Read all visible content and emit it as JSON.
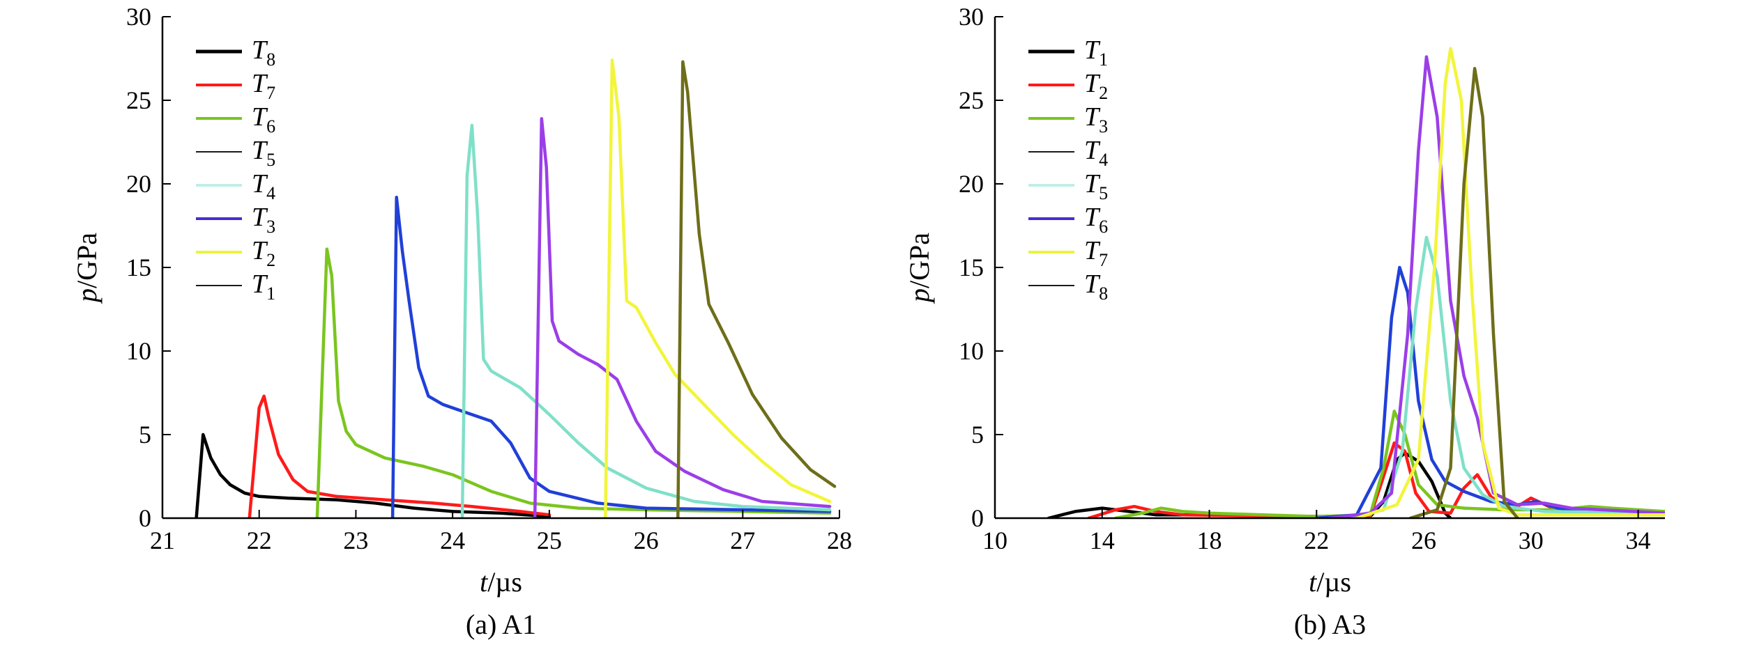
{
  "chart_data": [
    {
      "type": "line",
      "caption": "(a) A1",
      "xlabel_var": "t",
      "xlabel_unit": "/µs",
      "ylabel_var": "p",
      "ylabel_unit": "/GPa",
      "xlim": [
        21,
        28
      ],
      "ylim": [
        0,
        30
      ],
      "xticks": [
        21,
        22,
        23,
        24,
        25,
        26,
        27,
        28
      ],
      "yticks": [
        0,
        5,
        10,
        15,
        20,
        25,
        30
      ],
      "legend_position": "top-left",
      "legend": [
        {
          "name": "T",
          "sub": "8",
          "color": "#000000",
          "width": 5
        },
        {
          "name": "T",
          "sub": "7",
          "color": "#ff1a1a"
        },
        {
          "name": "T",
          "sub": "6",
          "color": "#7ac51f"
        },
        {
          "name": "T",
          "sub": "5",
          "color": "#1a1a1a",
          "width": 2
        },
        {
          "name": "T",
          "sub": "4",
          "color": "#bfeee6"
        },
        {
          "name": "T",
          "sub": "3",
          "color": "#4b2bd6"
        },
        {
          "name": "T",
          "sub": "2",
          "color": "#ecf43a"
        },
        {
          "name": "T",
          "sub": "1",
          "color": "#1a1a1a",
          "width": 2
        }
      ],
      "series": [
        {
          "color": "#000000",
          "points": [
            [
              21.35,
              0
            ],
            [
              21.42,
              5.0
            ],
            [
              21.5,
              3.6
            ],
            [
              21.6,
              2.6
            ],
            [
              21.7,
              2.0
            ],
            [
              21.85,
              1.5
            ],
            [
              22.0,
              1.3
            ],
            [
              22.3,
              1.2
            ],
            [
              22.8,
              1.1
            ],
            [
              23.2,
              0.9
            ],
            [
              23.6,
              0.6
            ],
            [
              24.0,
              0.4
            ],
            [
              24.5,
              0.3
            ],
            [
              25.0,
              0.1
            ]
          ]
        },
        {
          "color": "#ff1a1a",
          "points": [
            [
              21.9,
              0
            ],
            [
              22.0,
              6.6
            ],
            [
              22.05,
              7.3
            ],
            [
              22.1,
              6.0
            ],
            [
              22.2,
              3.8
            ],
            [
              22.35,
              2.3
            ],
            [
              22.5,
              1.6
            ],
            [
              22.8,
              1.3
            ],
            [
              23.3,
              1.1
            ],
            [
              23.8,
              0.9
            ],
            [
              24.2,
              0.7
            ],
            [
              24.7,
              0.4
            ],
            [
              25.0,
              0.2
            ]
          ]
        },
        {
          "color": "#7ac51f",
          "points": [
            [
              22.6,
              0
            ],
            [
              22.7,
              16.1
            ],
            [
              22.75,
              14.5
            ],
            [
              22.82,
              7.0
            ],
            [
              22.9,
              5.2
            ],
            [
              23.0,
              4.4
            ],
            [
              23.3,
              3.6
            ],
            [
              23.7,
              3.1
            ],
            [
              24.0,
              2.6
            ],
            [
              24.4,
              1.6
            ],
            [
              24.8,
              0.9
            ],
            [
              25.3,
              0.6
            ],
            [
              26.0,
              0.5
            ],
            [
              27.0,
              0.4
            ],
            [
              27.9,
              0.3
            ]
          ]
        },
        {
          "color": "#2040d8",
          "points": [
            [
              23.38,
              0
            ],
            [
              23.42,
              19.2
            ],
            [
              23.48,
              16.0
            ],
            [
              23.55,
              13.0
            ],
            [
              23.65,
              9.0
            ],
            [
              23.75,
              7.3
            ],
            [
              23.9,
              6.8
            ],
            [
              24.2,
              6.2
            ],
            [
              24.4,
              5.8
            ],
            [
              24.6,
              4.5
            ],
            [
              24.8,
              2.4
            ],
            [
              25.0,
              1.6
            ],
            [
              25.5,
              0.9
            ],
            [
              26.0,
              0.6
            ],
            [
              27.0,
              0.5
            ],
            [
              27.9,
              0.4
            ]
          ]
        },
        {
          "color": "#7fe0c8",
          "points": [
            [
              24.1,
              0
            ],
            [
              24.15,
              20.5
            ],
            [
              24.2,
              23.5
            ],
            [
              24.26,
              18.0
            ],
            [
              24.32,
              9.5
            ],
            [
              24.4,
              8.8
            ],
            [
              24.7,
              7.8
            ],
            [
              25.0,
              6.2
            ],
            [
              25.3,
              4.5
            ],
            [
              25.6,
              3.0
            ],
            [
              26.0,
              1.8
            ],
            [
              26.5,
              1.0
            ],
            [
              27.0,
              0.7
            ],
            [
              27.9,
              0.5
            ]
          ]
        },
        {
          "color": "#9b3ee8",
          "points": [
            [
              24.85,
              0
            ],
            [
              24.92,
              23.9
            ],
            [
              24.97,
              21.0
            ],
            [
              25.03,
              11.8
            ],
            [
              25.1,
              10.6
            ],
            [
              25.3,
              9.8
            ],
            [
              25.5,
              9.2
            ],
            [
              25.7,
              8.3
            ],
            [
              25.9,
              5.8
            ],
            [
              26.1,
              4.0
            ],
            [
              26.4,
              2.8
            ],
            [
              26.8,
              1.7
            ],
            [
              27.2,
              1.0
            ],
            [
              27.9,
              0.7
            ]
          ]
        },
        {
          "color": "#f2f53a",
          "points": [
            [
              25.58,
              0
            ],
            [
              25.65,
              27.4
            ],
            [
              25.72,
              24.0
            ],
            [
              25.8,
              13.0
            ],
            [
              25.9,
              12.6
            ],
            [
              26.1,
              10.5
            ],
            [
              26.3,
              8.6
            ],
            [
              26.6,
              6.8
            ],
            [
              26.9,
              5.0
            ],
            [
              27.2,
              3.4
            ],
            [
              27.5,
              2.0
            ],
            [
              27.9,
              1.0
            ]
          ]
        },
        {
          "color": "#6e6e1a",
          "points": [
            [
              26.33,
              0
            ],
            [
              26.38,
              27.3
            ],
            [
              26.43,
              25.5
            ],
            [
              26.55,
              17.0
            ],
            [
              26.65,
              12.8
            ],
            [
              26.85,
              10.5
            ],
            [
              27.1,
              7.4
            ],
            [
              27.4,
              4.8
            ],
            [
              27.7,
              2.9
            ],
            [
              27.95,
              1.9
            ]
          ]
        }
      ]
    },
    {
      "type": "line",
      "caption": "(b) A3",
      "xlabel_var": "t",
      "xlabel_unit": "/µs",
      "ylabel_var": "p",
      "ylabel_unit": "/GPa",
      "xlim": [
        10,
        35
      ],
      "ylim": [
        0,
        30
      ],
      "xticks": [
        10,
        14,
        18,
        22,
        26,
        30,
        34
      ],
      "yticks": [
        0,
        5,
        10,
        15,
        20,
        25,
        30
      ],
      "legend_position": "top-left",
      "legend": [
        {
          "name": "T",
          "sub": "1",
          "color": "#000000",
          "width": 5
        },
        {
          "name": "T",
          "sub": "2",
          "color": "#ff1a1a"
        },
        {
          "name": "T",
          "sub": "3",
          "color": "#7ac51f"
        },
        {
          "name": "T",
          "sub": "4",
          "color": "#1a1a1a",
          "width": 2
        },
        {
          "name": "T",
          "sub": "5",
          "color": "#bfeee6"
        },
        {
          "name": "T",
          "sub": "6",
          "color": "#4b2bd6"
        },
        {
          "name": "T",
          "sub": "7",
          "color": "#ecf43a"
        },
        {
          "name": "T",
          "sub": "8",
          "color": "#1a1a1a",
          "width": 2
        }
      ],
      "series": [
        {
          "color": "#000000",
          "points": [
            [
              12.0,
              0
            ],
            [
              13.0,
              0.4
            ],
            [
              14.0,
              0.6
            ],
            [
              15.0,
              0.4
            ],
            [
              16.0,
              0.2
            ],
            [
              18.0,
              0.2
            ],
            [
              22.0,
              0.1
            ],
            [
              24.0,
              0.1
            ],
            [
              24.5,
              1.0
            ],
            [
              25.0,
              3.5
            ],
            [
              25.3,
              3.9
            ],
            [
              25.8,
              3.4
            ],
            [
              26.3,
              2.2
            ],
            [
              26.8,
              0.3
            ],
            [
              27.0,
              0
            ]
          ]
        },
        {
          "color": "#ff1a1a",
          "points": [
            [
              13.5,
              0
            ],
            [
              14.5,
              0.5
            ],
            [
              15.2,
              0.7
            ],
            [
              16.0,
              0.4
            ],
            [
              17.0,
              0.2
            ],
            [
              22.0,
              0.1
            ],
            [
              24.0,
              0.1
            ],
            [
              24.4,
              2.0
            ],
            [
              24.9,
              4.5
            ],
            [
              25.3,
              4.0
            ],
            [
              25.7,
              1.5
            ],
            [
              26.2,
              0.4
            ],
            [
              27.0,
              0.3
            ],
            [
              27.5,
              1.8
            ],
            [
              28.0,
              2.6
            ],
            [
              28.5,
              1.3
            ],
            [
              29.2,
              0.4
            ],
            [
              30.0,
              1.2
            ],
            [
              30.8,
              0.6
            ],
            [
              32.0,
              0.5
            ],
            [
              35.0,
              0.4
            ]
          ]
        },
        {
          "color": "#7ac51f",
          "points": [
            [
              14.5,
              0
            ],
            [
              15.5,
              0.3
            ],
            [
              16.2,
              0.6
            ],
            [
              17.0,
              0.4
            ],
            [
              18.0,
              0.3
            ],
            [
              20.0,
              0.2
            ],
            [
              22.0,
              0.1
            ],
            [
              24.0,
              0.2
            ],
            [
              24.5,
              3.0
            ],
            [
              24.9,
              6.4
            ],
            [
              25.3,
              5.0
            ],
            [
              25.8,
              2.0
            ],
            [
              26.5,
              0.8
            ],
            [
              27.5,
              0.6
            ],
            [
              29.0,
              0.5
            ],
            [
              31.0,
              0.5
            ],
            [
              32.2,
              0.7
            ],
            [
              33.0,
              0.6
            ],
            [
              35.0,
              0.4
            ]
          ]
        },
        {
          "color": "#2040d8",
          "points": [
            [
              22.0,
              0
            ],
            [
              23.5,
              0.2
            ],
            [
              24.4,
              3.0
            ],
            [
              24.8,
              12.0
            ],
            [
              25.1,
              15.0
            ],
            [
              25.4,
              13.5
            ],
            [
              25.8,
              7.0
            ],
            [
              26.3,
              3.5
            ],
            [
              26.8,
              2.2
            ],
            [
              27.5,
              1.6
            ],
            [
              28.5,
              1.0
            ],
            [
              29.5,
              0.8
            ],
            [
              30.2,
              1.0
            ],
            [
              31.0,
              0.6
            ],
            [
              32.5,
              0.4
            ],
            [
              35.0,
              0.3
            ]
          ]
        },
        {
          "color": "#7fe0c8",
          "points": [
            [
              23.0,
              0
            ],
            [
              24.5,
              0.5
            ],
            [
              25.2,
              4.0
            ],
            [
              25.7,
              12.5
            ],
            [
              26.1,
              16.8
            ],
            [
              26.5,
              14.5
            ],
            [
              27.0,
              7.0
            ],
            [
              27.5,
              3.0
            ],
            [
              28.2,
              1.4
            ],
            [
              29.0,
              0.7
            ],
            [
              30.5,
              0.4
            ],
            [
              35.0,
              0.3
            ]
          ]
        },
        {
          "color": "#9b3ee8",
          "points": [
            [
              22.5,
              0
            ],
            [
              24.0,
              0.3
            ],
            [
              24.8,
              1.5
            ],
            [
              25.4,
              11.0
            ],
            [
              25.8,
              22.0
            ],
            [
              26.1,
              27.6
            ],
            [
              26.5,
              24.0
            ],
            [
              27.0,
              13.0
            ],
            [
              27.5,
              8.5
            ],
            [
              28.0,
              6.0
            ],
            [
              28.6,
              1.5
            ],
            [
              29.5,
              0.8
            ],
            [
              30.5,
              0.9
            ],
            [
              31.5,
              0.6
            ],
            [
              35.0,
              0.3
            ]
          ]
        },
        {
          "color": "#f2f53a",
          "points": [
            [
              23.5,
              0
            ],
            [
              25.0,
              0.8
            ],
            [
              25.8,
              3.5
            ],
            [
              26.4,
              15.0
            ],
            [
              26.8,
              26.0
            ],
            [
              27.0,
              28.1
            ],
            [
              27.4,
              25.0
            ],
            [
              27.8,
              13.5
            ],
            [
              28.2,
              4.5
            ],
            [
              28.8,
              0.6
            ],
            [
              29.5,
              0.2
            ],
            [
              35.0,
              0.2
            ]
          ]
        },
        {
          "color": "#6e6e1a",
          "points": [
            [
              25.5,
              0
            ],
            [
              26.5,
              0.5
            ],
            [
              27.0,
              3.0
            ],
            [
              27.5,
              20.0
            ],
            [
              27.9,
              26.9
            ],
            [
              28.2,
              24.0
            ],
            [
              28.6,
              11.0
            ],
            [
              29.0,
              1.0
            ],
            [
              29.5,
              0
            ]
          ]
        }
      ]
    }
  ]
}
